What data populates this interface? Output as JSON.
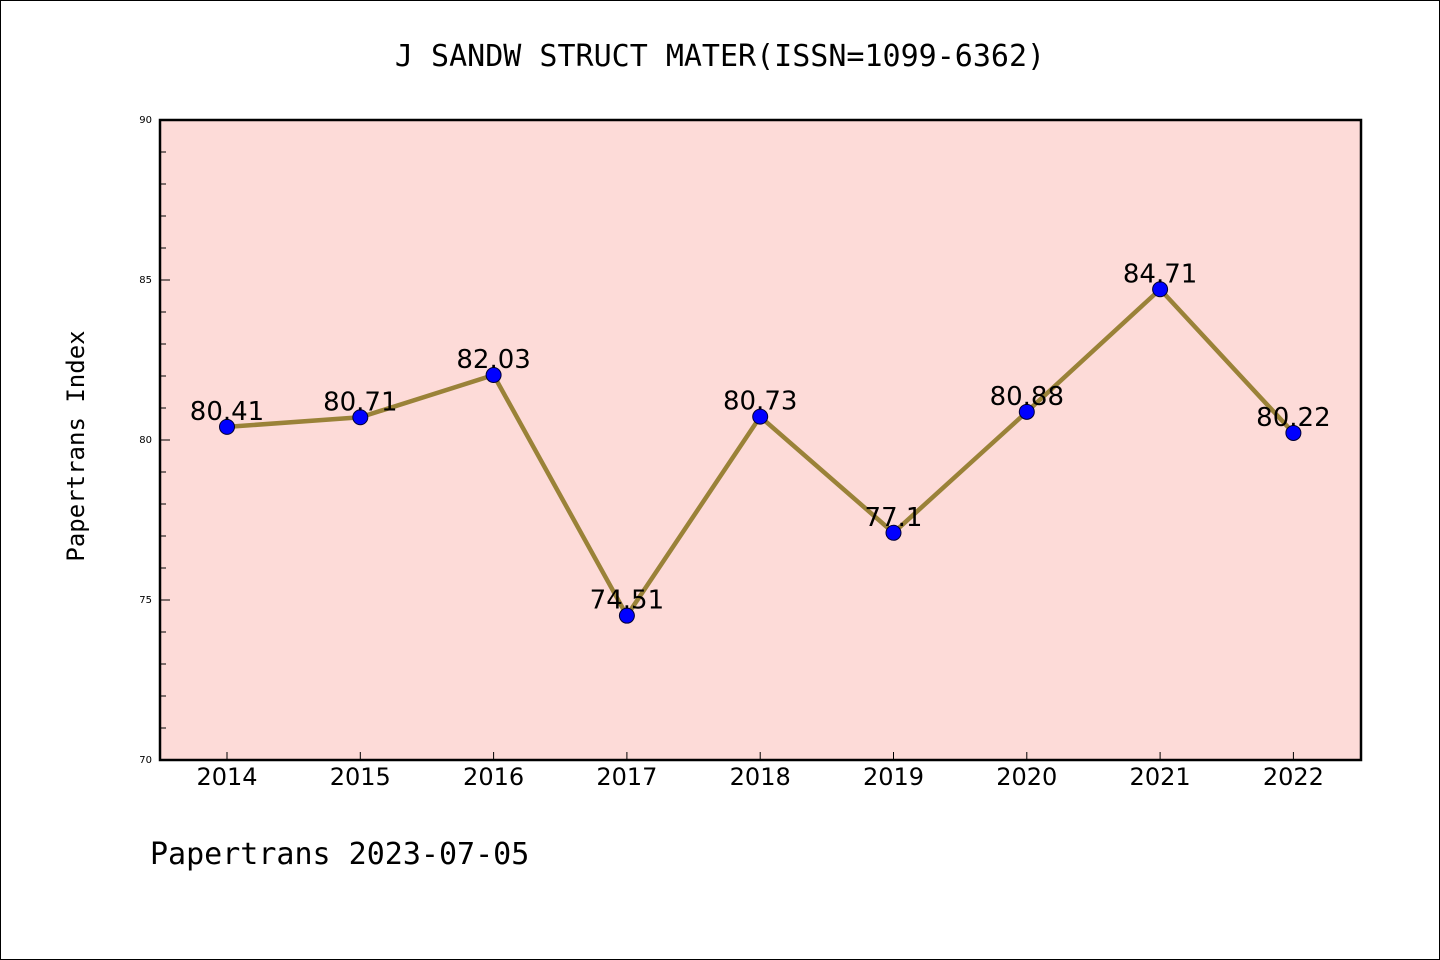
{
  "colors": {
    "plot_background": "#fddbd8",
    "line": "#9a8238",
    "marker": "#0000ff",
    "axis": "#000000"
  },
  "chart_data": {
    "type": "line",
    "title": "J SANDW STRUCT MATER(ISSN=1099-6362)",
    "xlabel": "",
    "ylabel": "Papertrans Index",
    "categories": [
      "2014",
      "2015",
      "2016",
      "2017",
      "2018",
      "2019",
      "2020",
      "2021",
      "2022"
    ],
    "series": [
      {
        "values": [
          80.41,
          80.71,
          82.03,
          74.51,
          80.73,
          77.1,
          80.88,
          84.71,
          80.22
        ],
        "labels": [
          "80.41",
          "80.71",
          "82.03",
          "74.51",
          "80.73",
          "77.1",
          "80.88",
          "84.71",
          "80.22"
        ]
      }
    ],
    "ylim": [
      70,
      90
    ],
    "yticks": [
      "70",
      "75",
      "80",
      "85",
      "90"
    ],
    "grid": false,
    "legend": "none"
  },
  "footer": "Papertrans 2023-07-05"
}
